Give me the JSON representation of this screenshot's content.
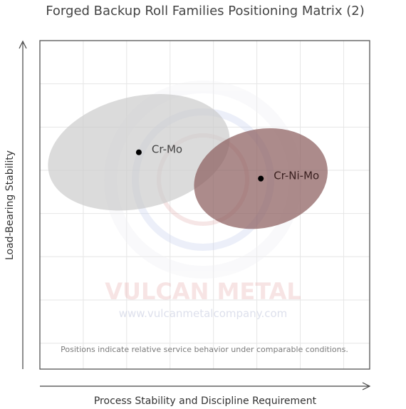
{
  "chart_data": {
    "type": "scatter",
    "title": "Forged Backup Roll Families Positioning Matrix (2)",
    "xlabel": "Process Stability and Discipline Requirement",
    "ylabel": "Load-Bearing Stability",
    "xlim": [
      0,
      10
    ],
    "ylim": [
      0,
      10
    ],
    "grid": true,
    "legend": "none",
    "note": "Positions indicate relative service behavior under comparable conditions.",
    "points": [
      {
        "label": "Cr-Mo",
        "x": 3.0,
        "y": 6.6,
        "spread_x": 2.8,
        "spread_y": 1.7,
        "rotation_deg": -13,
        "fill": "#cccccc",
        "fill_opacity": 0.7,
        "label_color": "#444444"
      },
      {
        "label": "Cr-Ni-Mo",
        "x": 6.7,
        "y": 5.8,
        "spread_x": 2.05,
        "spread_y": 1.5,
        "rotation_deg": -13,
        "fill": "#8c5e5e",
        "fill_opacity": 0.72,
        "label_color": "#3a2020"
      }
    ]
  },
  "watermark": {
    "name": "VULCAN METAL",
    "url": "www.vulcanmetalcompany.com"
  },
  "colors": {
    "frame": "#555555",
    "grid": "#e6e6e6",
    "axis": "#444444",
    "point": "#000000"
  }
}
